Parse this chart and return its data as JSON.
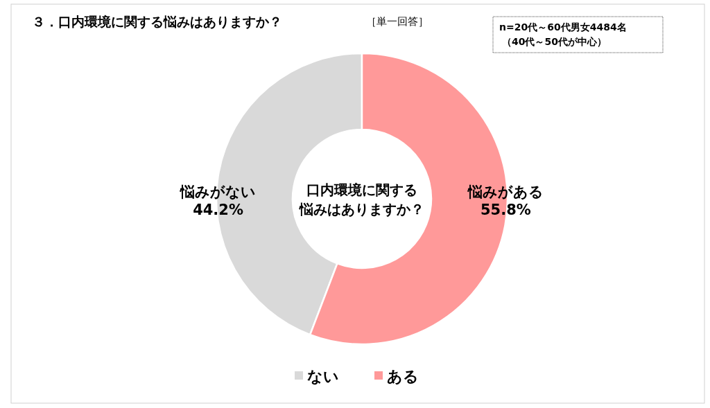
{
  "chart_data": {
    "type": "donut",
    "title": "３．口内環境に関する悩みはありますか？",
    "subtitle": "［単一回答］",
    "categories": [
      "ない",
      "ある"
    ],
    "values": [
      44.2,
      55.8
    ],
    "colors": [
      "#d9d9d9",
      "#ff9999"
    ],
    "value_labels": [
      "悩みがない\n44.2%",
      "悩みがある\n55.8%"
    ],
    "annotations": [
      "口内環境に関する",
      "悩みはありますか？",
      "n=20代～60代男女4484名",
      "（40代～50代が中心）"
    ],
    "legend": "bottom"
  }
}
